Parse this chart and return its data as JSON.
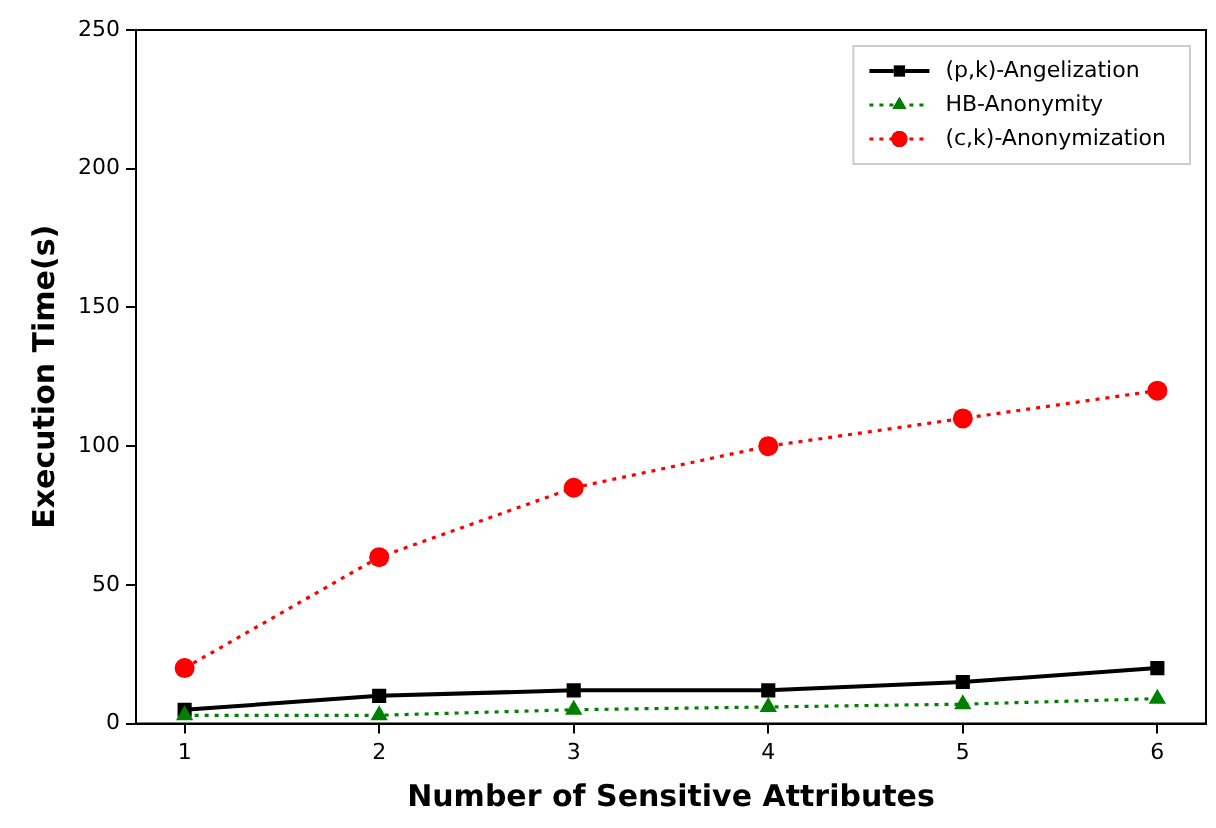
{
  "chart_data": {
    "type": "line",
    "xlabel": "Number of Sensitive Attributes",
    "ylabel": "Execution Time(s)",
    "x": [
      1,
      2,
      3,
      4,
      5,
      6
    ],
    "xlim": [
      0.75,
      6.25
    ],
    "xticks": [
      1,
      2,
      3,
      4,
      5,
      6
    ],
    "ylim": [
      0,
      250
    ],
    "yticks": [
      0,
      50,
      100,
      150,
      200,
      250
    ],
    "legend": "top right",
    "grid": false,
    "series": [
      {
        "name": "(p,k)-Angelization",
        "color": "#000000",
        "marker": "square",
        "line_style": "solid",
        "values": [
          5,
          10,
          12,
          12,
          15,
          20
        ]
      },
      {
        "name": "HB-Anonymity",
        "color": "#008000",
        "marker": "triangle",
        "line_style": "dotted",
        "values": [
          3,
          3,
          5,
          6,
          7,
          9
        ]
      },
      {
        "name": "(c,k)-Anonymization",
        "color": "#ff0000",
        "marker": "circle",
        "line_style": "dotted",
        "values": [
          20,
          60,
          85,
          100,
          110,
          120
        ]
      }
    ]
  }
}
